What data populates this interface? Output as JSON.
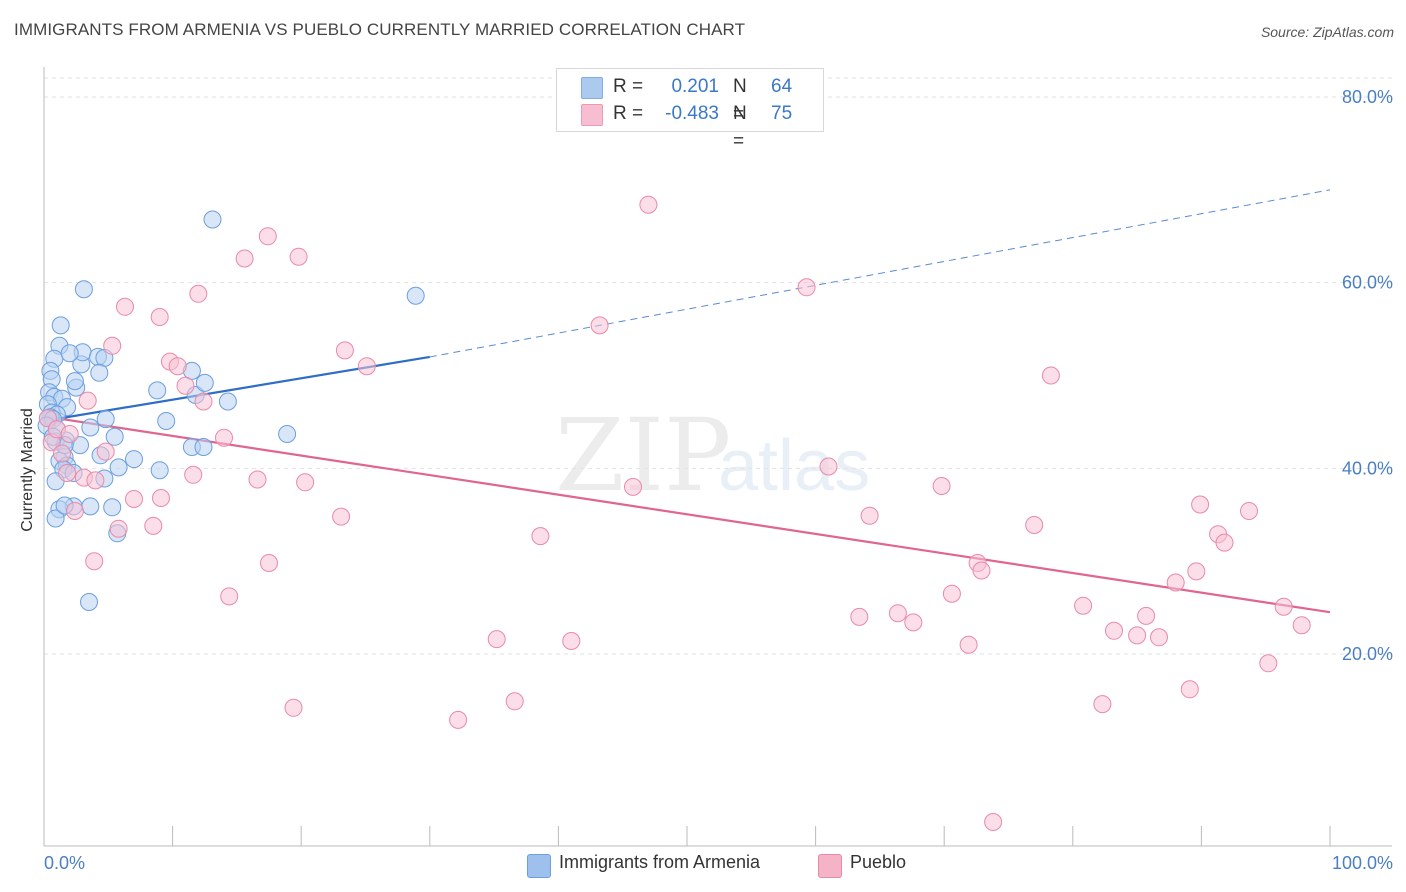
{
  "header": {
    "title": "IMMIGRANTS FROM ARMENIA VS PUEBLO CURRENTLY MARRIED CORRELATION CHART",
    "source": "Source: ZipAtlas.com"
  },
  "watermark": {
    "zip": "ZIP",
    "atlas": "atlas"
  },
  "stats": {
    "rows": [
      {
        "r_label": "R =",
        "r_value": "0.201",
        "n_label": "N =",
        "n_value": "64",
        "color": "#9ec0ec"
      },
      {
        "r_label": "R =",
        "r_value": "-0.483",
        "n_label": "N =",
        "n_value": "75",
        "color": "#f5b3c8"
      }
    ]
  },
  "legend": {
    "items": [
      {
        "label": "Immigrants from Armenia",
        "color": "#9ec0ec"
      },
      {
        "label": "Pueblo",
        "color": "#f5b3c8"
      }
    ]
  },
  "chart_data": {
    "type": "scatter",
    "title": "IMMIGRANTS FROM ARMENIA VS PUEBLO CURRENTLY MARRIED CORRELATION CHART",
    "xlabel": "",
    "ylabel": "Currently Married",
    "xlim": [
      0,
      100
    ],
    "ylim": [
      0,
      82
    ],
    "x_tick_labels": [
      "0.0%",
      "100.0%"
    ],
    "y_ticks": [
      20,
      40,
      60,
      80
    ],
    "y_tick_labels": [
      "20.0%",
      "40.0%",
      "60.0%",
      "80.0%"
    ],
    "grid": true,
    "legend_position": "bottom-center",
    "series": [
      {
        "name": "Immigrants from Armenia",
        "color": "#6b9fdf",
        "fill": "#b8d2f3",
        "trend": {
          "x0": 0,
          "y0": 45.1,
          "x1": 30,
          "y1": 52.0,
          "dash_to_x": 100,
          "dash_to_y": 70.0,
          "color": "#2e6ec6"
        },
        "points": [
          [
            1.3,
            55.4
          ],
          [
            1.2,
            53.2
          ],
          [
            0.8,
            51.8
          ],
          [
            0.5,
            50.5
          ],
          [
            0.6,
            49.6
          ],
          [
            0.4,
            48.2
          ],
          [
            0.8,
            47.7
          ],
          [
            1.4,
            47.5
          ],
          [
            0.3,
            46.9
          ],
          [
            1.8,
            46.6
          ],
          [
            0.6,
            46.0
          ],
          [
            1.0,
            45.8
          ],
          [
            0.5,
            45.5
          ],
          [
            0.3,
            45.4
          ],
          [
            0.7,
            45.3
          ],
          [
            0.2,
            44.6
          ],
          [
            1.0,
            44.2
          ],
          [
            0.9,
            42.9
          ],
          [
            1.7,
            43.0
          ],
          [
            2.8,
            42.5
          ],
          [
            3.6,
            44.4
          ],
          [
            1.6,
            41.2
          ],
          [
            1.2,
            40.8
          ],
          [
            1.8,
            40.3
          ],
          [
            1.5,
            39.9
          ],
          [
            2.3,
            39.5
          ],
          [
            0.9,
            38.6
          ],
          [
            2.3,
            35.9
          ],
          [
            1.2,
            35.6
          ],
          [
            0.9,
            34.6
          ],
          [
            3.6,
            35.9
          ],
          [
            5.3,
            35.8
          ],
          [
            2.5,
            48.7
          ],
          [
            2.4,
            49.4
          ],
          [
            2.9,
            51.2
          ],
          [
            3.0,
            52.5
          ],
          [
            4.2,
            52.0
          ],
          [
            4.7,
            51.9
          ],
          [
            4.3,
            50.3
          ],
          [
            3.1,
            59.3
          ],
          [
            2.0,
            52.4
          ],
          [
            5.5,
            43.4
          ],
          [
            5.8,
            40.1
          ],
          [
            4.8,
            45.3
          ],
          [
            4.4,
            41.4
          ],
          [
            4.7,
            38.9
          ],
          [
            5.7,
            33.0
          ],
          [
            7.0,
            41.0
          ],
          [
            8.8,
            48.4
          ],
          [
            9.5,
            45.1
          ],
          [
            9.0,
            39.8
          ],
          [
            11.5,
            50.5
          ],
          [
            11.8,
            47.9
          ],
          [
            12.5,
            49.2
          ],
          [
            11.5,
            42.3
          ],
          [
            12.4,
            42.3
          ],
          [
            14.3,
            47.2
          ],
          [
            13.1,
            66.8
          ],
          [
            18.9,
            43.7
          ],
          [
            28.9,
            58.6
          ],
          [
            3.5,
            25.6
          ],
          [
            1.6,
            42.5
          ],
          [
            0.7,
            43.4
          ],
          [
            1.6,
            36.0
          ]
        ]
      },
      {
        "name": "Pueblo",
        "color": "#e98aa8",
        "fill": "#f7c2d3",
        "trend": {
          "x0": 0,
          "y0": 45.6,
          "x1": 100,
          "y1": 24.5,
          "color": "#e0658f"
        },
        "points": [
          [
            0.3,
            45.4
          ],
          [
            0.6,
            42.8
          ],
          [
            1.4,
            41.6
          ],
          [
            1.8,
            39.5
          ],
          [
            3.1,
            39.0
          ],
          [
            3.4,
            47.3
          ],
          [
            2.4,
            35.4
          ],
          [
            4.0,
            38.7
          ],
          [
            3.9,
            30.0
          ],
          [
            4.8,
            41.8
          ],
          [
            5.3,
            53.2
          ],
          [
            6.3,
            57.4
          ],
          [
            5.8,
            33.5
          ],
          [
            7.0,
            36.7
          ],
          [
            8.5,
            33.8
          ],
          [
            9.1,
            36.8
          ],
          [
            9.0,
            56.3
          ],
          [
            9.8,
            51.5
          ],
          [
            10.4,
            51.0
          ],
          [
            11.0,
            48.9
          ],
          [
            11.6,
            39.3
          ],
          [
            12.0,
            58.8
          ],
          [
            12.4,
            47.2
          ],
          [
            14.0,
            43.3
          ],
          [
            14.4,
            26.2
          ],
          [
            15.6,
            62.6
          ],
          [
            16.6,
            38.8
          ],
          [
            17.4,
            65.0
          ],
          [
            17.5,
            29.8
          ],
          [
            19.8,
            62.8
          ],
          [
            20.3,
            38.5
          ],
          [
            19.4,
            14.2
          ],
          [
            23.1,
            34.8
          ],
          [
            23.4,
            52.7
          ],
          [
            25.1,
            51.0
          ],
          [
            32.2,
            12.9
          ],
          [
            35.2,
            21.6
          ],
          [
            36.6,
            14.9
          ],
          [
            38.6,
            32.7
          ],
          [
            41.0,
            21.4
          ],
          [
            43.2,
            55.4
          ],
          [
            45.8,
            38.0
          ],
          [
            47.0,
            68.4
          ],
          [
            59.3,
            59.5
          ],
          [
            61.0,
            40.2
          ],
          [
            63.4,
            24.0
          ],
          [
            64.2,
            34.9
          ],
          [
            66.4,
            24.4
          ],
          [
            67.6,
            23.4
          ],
          [
            69.8,
            38.1
          ],
          [
            70.6,
            26.5
          ],
          [
            71.9,
            21.0
          ],
          [
            72.6,
            29.8
          ],
          [
            72.9,
            29.0
          ],
          [
            73.8,
            1.9
          ],
          [
            77.0,
            33.9
          ],
          [
            78.3,
            50.0
          ],
          [
            80.8,
            25.2
          ],
          [
            82.3,
            14.6
          ],
          [
            83.2,
            22.5
          ],
          [
            85.0,
            22.0
          ],
          [
            85.7,
            24.1
          ],
          [
            86.7,
            21.8
          ],
          [
            88.0,
            27.7
          ],
          [
            89.1,
            16.2
          ],
          [
            89.6,
            28.9
          ],
          [
            89.9,
            36.1
          ],
          [
            91.3,
            32.9
          ],
          [
            91.8,
            32.0
          ],
          [
            93.7,
            35.4
          ],
          [
            95.2,
            19.0
          ],
          [
            96.4,
            25.1
          ],
          [
            97.8,
            23.1
          ],
          [
            1.0,
            44.2
          ],
          [
            2.0,
            43.7
          ]
        ]
      }
    ]
  }
}
